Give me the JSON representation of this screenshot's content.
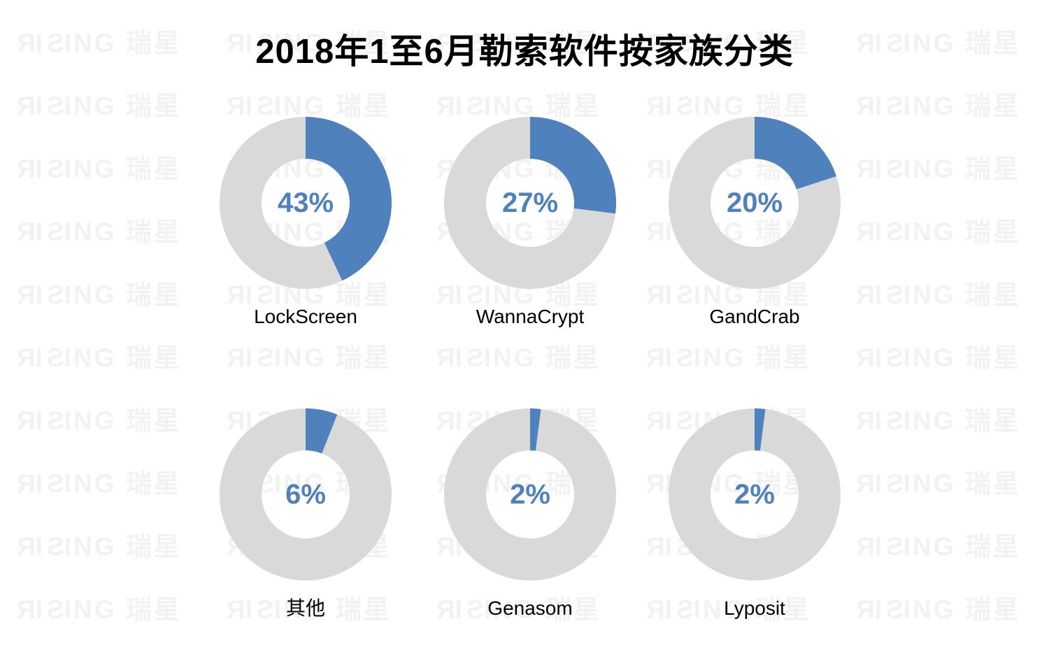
{
  "watermark": {
    "text": "RISING 瑞星",
    "color": "#f2f2f2"
  },
  "colors": {
    "highlight_blue": "#4f81bd",
    "remainder_gray": "#d9d9d9",
    "percent_text": "#4f81bd",
    "label_text": "#000000",
    "title_text": "#000000",
    "background": "#ffffff"
  },
  "chart_data": {
    "type": "pie",
    "variant": "donut",
    "title": "2018年1至6月勒索软件按家族分类",
    "unit": "percent",
    "direction": "clockwise",
    "start_angle_deg": 0,
    "layout": {
      "rows": 2,
      "cols": 3,
      "legend": "none",
      "grid": "off"
    },
    "series": [
      {
        "name": "LockScreen",
        "value": 43,
        "remainder": 57,
        "center_label": "43%"
      },
      {
        "name": "WannaCrypt",
        "value": 27,
        "remainder": 73,
        "center_label": "27%"
      },
      {
        "name": "GandCrab",
        "value": 20,
        "remainder": 80,
        "center_label": "20%"
      },
      {
        "name": "其他",
        "value": 6,
        "remainder": 94,
        "center_label": "6%"
      },
      {
        "name": "Genasom",
        "value": 2,
        "remainder": 98,
        "center_label": "2%"
      },
      {
        "name": "Lyposit",
        "value": 2,
        "remainder": 98,
        "center_label": "2%"
      }
    ]
  }
}
